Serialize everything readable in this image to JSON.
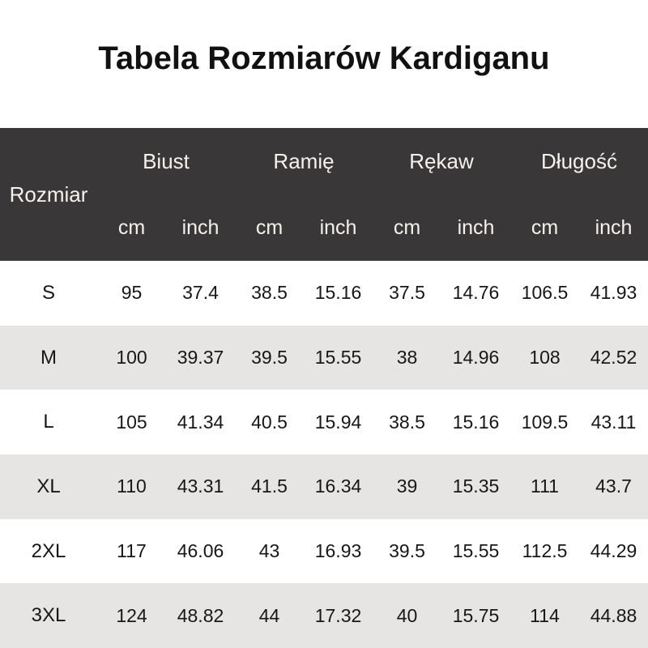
{
  "title": "Tabela Rozmiarów Kardiganu",
  "colors": {
    "page_bg": "#ffffff",
    "title_color": "#111111",
    "header_bg": "#3a3739",
    "header_text": "#f5f1ec",
    "row_bg": "#ffffff",
    "row_alt_bg": "#e7e5e3",
    "data_text": "#171717"
  },
  "table": {
    "size_column_label": "Rozmiar",
    "groups": [
      {
        "label": "Biust"
      },
      {
        "label": "Ramię"
      },
      {
        "label": "Rękaw"
      },
      {
        "label": "Długość"
      }
    ],
    "unit_labels": [
      "cm",
      "inch",
      "cm",
      "inch",
      "cm",
      "inch",
      "cm",
      "inch"
    ],
    "rows": [
      {
        "size": "S",
        "values": [
          "95",
          "37.4",
          "38.5",
          "15.16",
          "37.5",
          "14.76",
          "106.5",
          "41.93"
        ]
      },
      {
        "size": "M",
        "values": [
          "100",
          "39.37",
          "39.5",
          "15.55",
          "38",
          "14.96",
          "108",
          "42.52"
        ]
      },
      {
        "size": "L",
        "values": [
          "105",
          "41.34",
          "40.5",
          "15.94",
          "38.5",
          "15.16",
          "109.5",
          "43.11"
        ]
      },
      {
        "size": "XL",
        "values": [
          "110",
          "43.31",
          "41.5",
          "16.34",
          "39",
          "15.35",
          "111",
          "43.7"
        ]
      },
      {
        "size": "2XL",
        "values": [
          "117",
          "46.06",
          "43",
          "16.93",
          "39.5",
          "15.55",
          "112.5",
          "44.29"
        ]
      },
      {
        "size": "3XL",
        "values": [
          "124",
          "48.82",
          "44",
          "17.32",
          "40",
          "15.75",
          "114",
          "44.88"
        ]
      }
    ]
  }
}
